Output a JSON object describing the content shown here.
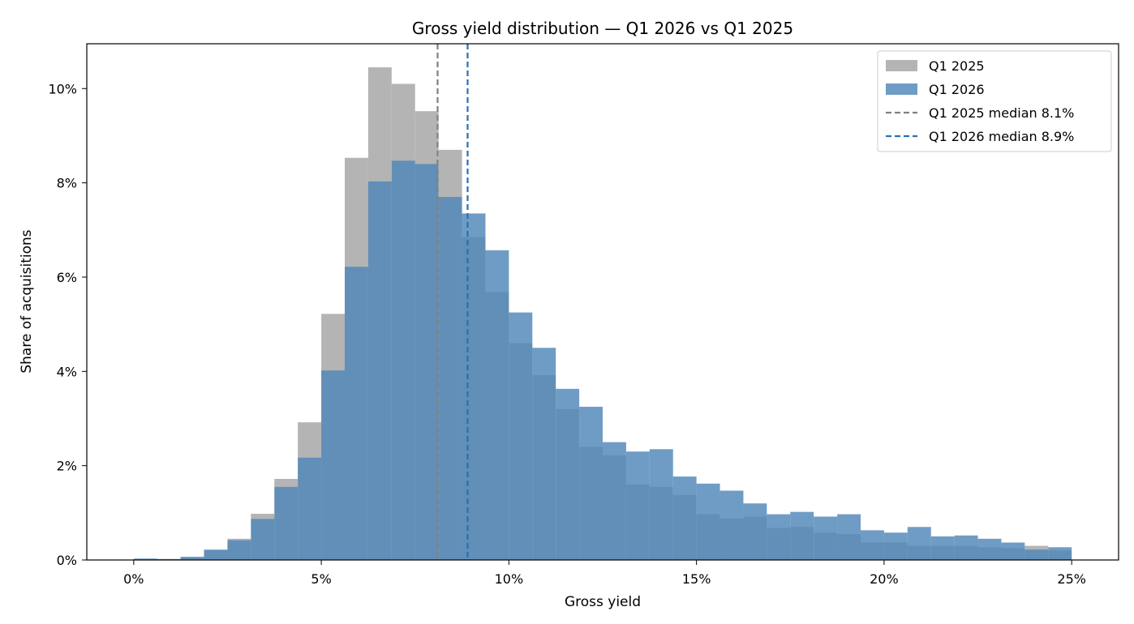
{
  "chart_data": {
    "type": "bar",
    "subtype": "overlaid-histogram",
    "title": "Gross yield distribution — Q1 2026 vs Q1 2025",
    "xlabel": "Gross yield",
    "ylabel": "Share of acquisitions",
    "xlim": [
      -1.25,
      26.25
    ],
    "ylim": [
      0,
      10.95
    ],
    "x_ticks": [
      0,
      5,
      10,
      15,
      20,
      25
    ],
    "x_tick_labels": [
      "0%",
      "5%",
      "10%",
      "15%",
      "20%",
      "25%"
    ],
    "y_ticks": [
      0,
      2,
      4,
      6,
      8,
      10
    ],
    "y_tick_labels": [
      "0%",
      "2%",
      "4%",
      "6%",
      "8%",
      "10%"
    ],
    "bin_edges": [
      0,
      0.625,
      1.25,
      1.875,
      2.5,
      3.125,
      3.75,
      4.375,
      5,
      5.625,
      6.25,
      6.875,
      7.5,
      8.125,
      8.75,
      9.375,
      10,
      10.625,
      11.25,
      11.875,
      12.5,
      13.125,
      13.75,
      14.375,
      15,
      15.625,
      16.25,
      16.875,
      17.5,
      18.125,
      18.75,
      19.375,
      20,
      20.625,
      21.25,
      21.875,
      22.5,
      23.125,
      23.75,
      24.375,
      25
    ],
    "grid": false,
    "legend_position": "top-right",
    "series": [
      {
        "name": "Q1 2025",
        "color": "#b4b4b4",
        "values": [
          0.02,
          0.02,
          0.07,
          0.2,
          0.45,
          0.98,
          1.72,
          2.92,
          5.22,
          8.53,
          10.45,
          10.1,
          9.52,
          8.7,
          6.85,
          5.68,
          4.6,
          3.92,
          3.2,
          2.4,
          2.22,
          1.6,
          1.55,
          1.38,
          0.97,
          0.88,
          0.92,
          0.68,
          0.7,
          0.58,
          0.55,
          0.37,
          0.37,
          0.3,
          0.3,
          0.3,
          0.27,
          0.25,
          0.3,
          0.2
        ]
      },
      {
        "name": "Q1 2026",
        "color": "#4f86b8",
        "values": [
          0.03,
          0.02,
          0.06,
          0.22,
          0.42,
          0.87,
          1.55,
          2.17,
          4.02,
          6.22,
          8.03,
          8.47,
          8.4,
          7.7,
          7.35,
          6.57,
          5.25,
          4.5,
          3.63,
          3.25,
          2.5,
          2.3,
          2.35,
          1.77,
          1.62,
          1.47,
          1.2,
          0.97,
          1.02,
          0.92,
          0.97,
          0.63,
          0.58,
          0.7,
          0.5,
          0.52,
          0.45,
          0.37,
          0.22,
          0.27
        ]
      }
    ],
    "reference_lines": [
      {
        "name": "Q1 2025 median 8.1%",
        "x": 8.1,
        "color": "#808080",
        "style": "dashed"
      },
      {
        "name": "Q1 2026 median 8.9%",
        "x": 8.9,
        "color": "#2b6fb2",
        "style": "dashed"
      }
    ]
  }
}
